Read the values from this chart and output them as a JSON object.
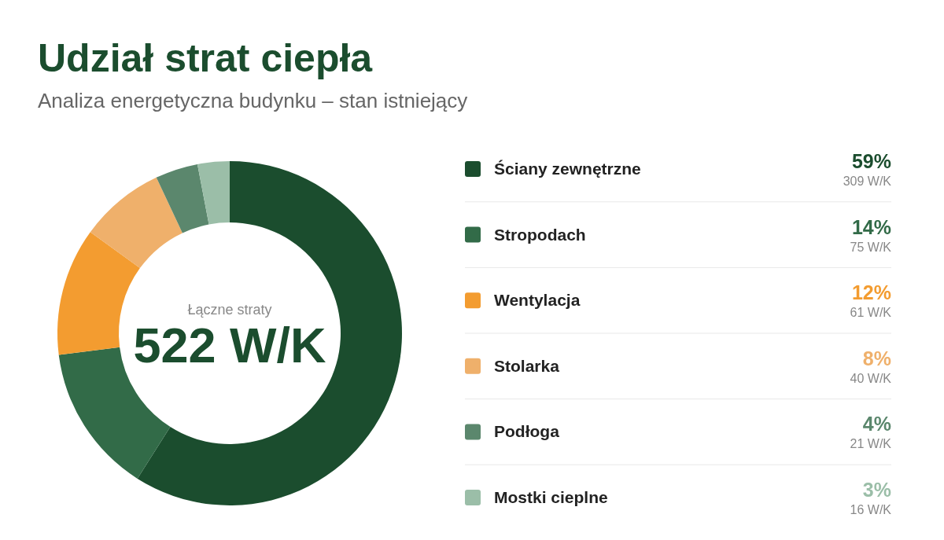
{
  "chart_data": {
    "type": "donut",
    "title": "Udział strat ciepła",
    "subtitle": "Analiza energetyczna budynku – stan istniejący",
    "categories": [
      "Ściany zewnętrzne",
      "Stropodach",
      "Wentylacja",
      "Stolarka",
      "Podłoga",
      "Mostki cieplne"
    ],
    "values": [
      59,
      14,
      12,
      8,
      4,
      3
    ],
    "colors": [
      "#1b4d2e",
      "#326b48",
      "#f39c30",
      "#efb06b",
      "#5b876d",
      "#9bbea8"
    ],
    "annotations": [
      "Łączne straty",
      "522 W/K",
      {
        "text": "59%",
        "x": "Ściany zewnętrzne"
      },
      {
        "text": "309 W/K",
        "x": "Ściany zewnętrzne"
      },
      {
        "text": "14%",
        "x": "Stropodach"
      },
      {
        "text": "75 W/K",
        "x": "Stropodach"
      },
      {
        "text": "12%",
        "x": "Wentylacja"
      },
      {
        "text": "61 W/K",
        "x": "Wentylacja"
      },
      {
        "text": "8%",
        "x": "Stolarka"
      },
      {
        "text": "40 W/K",
        "x": "Stolarka"
      },
      {
        "text": "4%",
        "x": "Podłoga"
      },
      {
        "text": "21 W/K",
        "x": "Podłoga"
      },
      {
        "text": "3%",
        "x": "Mostki cieplne"
      },
      {
        "text": "16 W/K",
        "x": "Mostki cieplne"
      }
    ],
    "legend": "right"
  }
}
